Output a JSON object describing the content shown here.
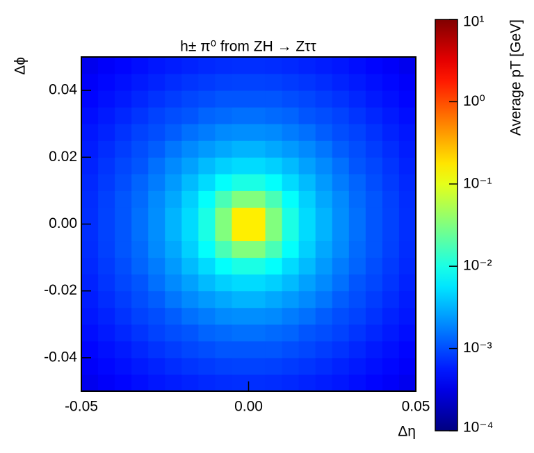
{
  "chart_data": {
    "type": "heatmap",
    "title": "h± π⁰ from ZH → Zττ",
    "x_label": "Δη",
    "y_label": "Δϕ",
    "colorbar_label": "Average pT [GeV]",
    "xbins": [
      -0.05,
      -0.045,
      -0.04,
      -0.035,
      -0.03,
      -0.025,
      -0.02,
      -0.015,
      -0.01,
      -0.005,
      0,
      0.005,
      0.01,
      0.015,
      0.02,
      0.025,
      0.03,
      0.035,
      0.04,
      0.045,
      0.05
    ],
    "ybins": [
      -0.05,
      -0.045,
      -0.04,
      -0.035,
      -0.03,
      -0.025,
      -0.02,
      -0.015,
      -0.01,
      -0.005,
      0,
      0.005,
      0.01,
      0.015,
      0.02,
      0.025,
      0.03,
      0.035,
      0.04,
      0.045,
      0.05
    ],
    "xlim": [
      -0.05,
      0.05
    ],
    "ylim": [
      -0.05,
      0.05
    ],
    "xticks": [
      -0.05,
      {
        "value": 0,
        "label": "0.00"
      },
      0.05
    ],
    "yticks": [
      -0.04,
      -0.02,
      {
        "value": 0,
        "label": "0.00"
      },
      0.02,
      0.04
    ],
    "zlim": [
      0.0001,
      10
    ],
    "zscale": "log",
    "colormap": "jet",
    "zticks": [
      {
        "value": 0.0001,
        "label": "10⁻⁴"
      },
      {
        "value": 0.001,
        "label": "10⁻³"
      },
      {
        "value": 0.01,
        "label": "10⁻²"
      },
      {
        "value": 0.1,
        "label": "10⁻¹"
      },
      {
        "value": 1,
        "label": "10⁰"
      },
      {
        "value": 10,
        "label": "10¹"
      }
    ],
    "z": [
      [
        0.00035,
        0.0004,
        0.00044,
        0.00049,
        0.00054,
        0.00058,
        0.00062,
        0.00066,
        0.00069,
        0.00071,
        0.00071,
        0.00069,
        0.00066,
        0.00062,
        0.00058,
        0.00054,
        0.00049,
        0.00044,
        0.0004,
        0.00035
      ],
      [
        0.0004,
        0.00045,
        0.0005,
        0.00056,
        0.00062,
        0.00069,
        0.00076,
        0.00081,
        0.00087,
        0.00089,
        0.00089,
        0.00087,
        0.00081,
        0.00076,
        0.00069,
        0.00062,
        0.00056,
        0.0005,
        0.00045,
        0.0004
      ],
      [
        0.00044,
        0.0005,
        0.00056,
        0.00065,
        0.00074,
        0.00083,
        0.00093,
        0.001,
        0.0011,
        0.0011,
        0.0011,
        0.0011,
        0.001,
        0.00093,
        0.00083,
        0.00074,
        0.00065,
        0.00056,
        0.0005,
        0.00044
      ],
      [
        0.00049,
        0.00056,
        0.00065,
        0.00076,
        0.00089,
        0.001,
        0.0011,
        0.0013,
        0.0014,
        0.0015,
        0.0015,
        0.0014,
        0.0013,
        0.0011,
        0.001,
        0.00089,
        0.00076,
        0.00065,
        0.00056,
        0.00049
      ],
      [
        0.00054,
        0.00062,
        0.00074,
        0.00089,
        0.001,
        0.0012,
        0.0015,
        0.0017,
        0.002,
        0.0021,
        0.0021,
        0.002,
        0.0017,
        0.0015,
        0.0012,
        0.001,
        0.00089,
        0.00074,
        0.00062,
        0.00054
      ],
      [
        0.00058,
        0.00069,
        0.00083,
        0.001,
        0.0012,
        0.0016,
        0.002,
        0.0024,
        0.0028,
        0.0032,
        0.0032,
        0.0028,
        0.0024,
        0.002,
        0.0016,
        0.0012,
        0.001,
        0.00083,
        0.00069,
        0.00058
      ],
      [
        0.00062,
        0.00076,
        0.00093,
        0.0011,
        0.0015,
        0.002,
        0.0026,
        0.0035,
        0.0044,
        0.005,
        0.005,
        0.0044,
        0.0035,
        0.0026,
        0.002,
        0.0015,
        0.0011,
        0.00093,
        0.00076,
        0.00062
      ],
      [
        0.00066,
        0.00081,
        0.001,
        0.0013,
        0.0017,
        0.0024,
        0.0035,
        0.005,
        0.0078,
        0.01,
        0.01,
        0.0078,
        0.005,
        0.0035,
        0.0024,
        0.0017,
        0.0013,
        0.001,
        0.00081,
        0.00066
      ],
      [
        0.00069,
        0.00087,
        0.0011,
        0.0014,
        0.002,
        0.0028,
        0.0044,
        0.0078,
        0.017,
        0.032,
        0.032,
        0.017,
        0.0078,
        0.0044,
        0.0028,
        0.002,
        0.0014,
        0.0011,
        0.00087,
        0.00069
      ],
      [
        0.00071,
        0.00089,
        0.0011,
        0.0015,
        0.0021,
        0.0032,
        0.005,
        0.01,
        0.032,
        0.16,
        0.16,
        0.032,
        0.01,
        0.005,
        0.0032,
        0.0021,
        0.0015,
        0.0011,
        0.00089,
        0.00071
      ],
      [
        0.00071,
        0.00089,
        0.0011,
        0.0015,
        0.0021,
        0.0032,
        0.005,
        0.01,
        0.032,
        0.16,
        0.16,
        0.032,
        0.01,
        0.005,
        0.0032,
        0.0021,
        0.0015,
        0.0011,
        0.00089,
        0.00071
      ],
      [
        0.00069,
        0.00087,
        0.0011,
        0.0014,
        0.002,
        0.0028,
        0.0044,
        0.0078,
        0.017,
        0.032,
        0.032,
        0.017,
        0.0078,
        0.0044,
        0.0028,
        0.002,
        0.0014,
        0.0011,
        0.00087,
        0.00069
      ],
      [
        0.00066,
        0.00081,
        0.001,
        0.0013,
        0.0017,
        0.0024,
        0.0035,
        0.005,
        0.0078,
        0.01,
        0.01,
        0.0078,
        0.005,
        0.0035,
        0.0024,
        0.0017,
        0.0013,
        0.001,
        0.00081,
        0.00066
      ],
      [
        0.00062,
        0.00076,
        0.00093,
        0.0011,
        0.0015,
        0.002,
        0.0026,
        0.0035,
        0.0044,
        0.005,
        0.005,
        0.0044,
        0.0035,
        0.0026,
        0.002,
        0.0015,
        0.0011,
        0.00093,
        0.00076,
        0.00062
      ],
      [
        0.00058,
        0.00069,
        0.00083,
        0.001,
        0.0012,
        0.0016,
        0.002,
        0.0024,
        0.0028,
        0.0032,
        0.0032,
        0.0028,
        0.0024,
        0.002,
        0.0016,
        0.0012,
        0.001,
        0.00083,
        0.00069,
        0.00058
      ],
      [
        0.00054,
        0.00062,
        0.00074,
        0.00089,
        0.001,
        0.0012,
        0.0015,
        0.0017,
        0.002,
        0.0021,
        0.0021,
        0.002,
        0.0017,
        0.0015,
        0.0012,
        0.001,
        0.00089,
        0.00074,
        0.00062,
        0.00054
      ],
      [
        0.00049,
        0.00056,
        0.00065,
        0.00076,
        0.00089,
        0.001,
        0.0011,
        0.0013,
        0.0014,
        0.0015,
        0.0015,
        0.0014,
        0.0013,
        0.0011,
        0.001,
        0.00089,
        0.00076,
        0.00065,
        0.00056,
        0.00049
      ],
      [
        0.00044,
        0.0005,
        0.00056,
        0.00065,
        0.00074,
        0.00083,
        0.00093,
        0.001,
        0.0011,
        0.0011,
        0.0011,
        0.0011,
        0.001,
        0.00093,
        0.00083,
        0.00074,
        0.00065,
        0.00056,
        0.0005,
        0.00044
      ],
      [
        0.0004,
        0.00045,
        0.0005,
        0.00056,
        0.00062,
        0.00069,
        0.00076,
        0.00081,
        0.00087,
        0.00089,
        0.00089,
        0.00087,
        0.00081,
        0.00076,
        0.00069,
        0.00062,
        0.00056,
        0.0005,
        0.00045,
        0.0004
      ],
      [
        0.00035,
        0.0004,
        0.00044,
        0.00049,
        0.00054,
        0.00058,
        0.00062,
        0.00066,
        0.00069,
        0.00071,
        0.00071,
        0.00069,
        0.00066,
        0.00062,
        0.00058,
        0.00054,
        0.00049,
        0.00044,
        0.0004,
        0.00035
      ]
    ]
  }
}
